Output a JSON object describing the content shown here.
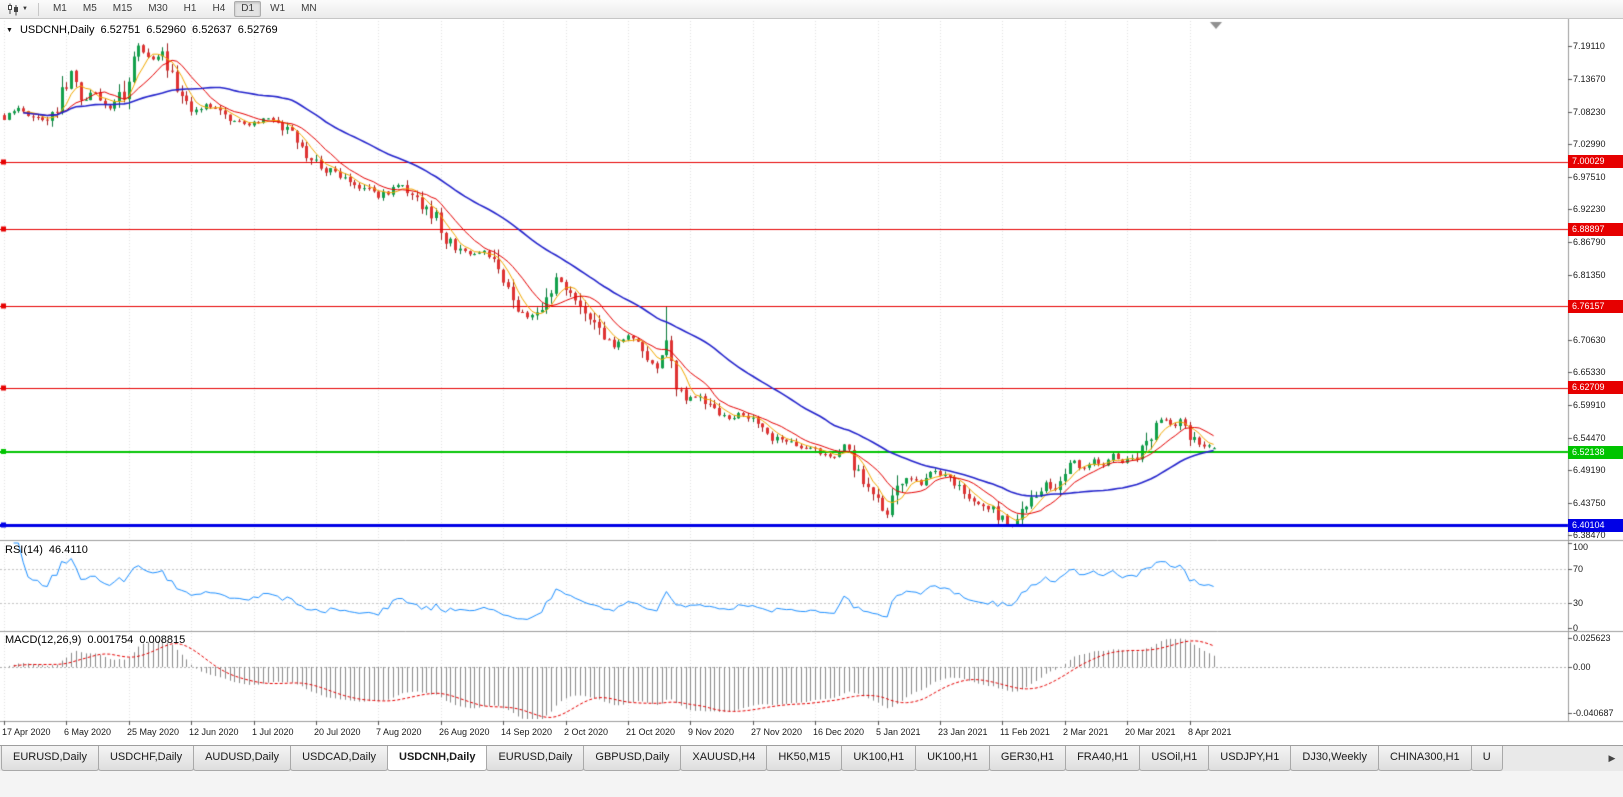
{
  "toolbar": {
    "chart_type_icon": "candlestick-chart-icon",
    "dropdown_icon": "chevron-down-icon",
    "timeframes": [
      "M1",
      "M5",
      "M15",
      "M30",
      "H1",
      "H4",
      "D1",
      "W1",
      "MN"
    ],
    "active_timeframe": "D1"
  },
  "main_chart": {
    "symbol_period": "USDCNH,Daily",
    "ohlc": {
      "open": "6.52751",
      "high": "6.52960",
      "low": "6.52637",
      "close": "6.52769"
    },
    "price_axis_labels": [
      "7.19110",
      "7.13670",
      "7.08230",
      "7.02990",
      "6.97510",
      "6.92230",
      "6.86790",
      "6.81350",
      "6.70630",
      "6.65330",
      "6.59910",
      "6.54470",
      "6.49190",
      "6.43750",
      "6.38470"
    ],
    "price_lines": [
      {
        "label": "7.00029",
        "price": 7.00029,
        "color": "#e60000",
        "line_width": 1
      },
      {
        "label": "6.88897",
        "price": 6.88897,
        "color": "#e60000",
        "line_width": 1
      },
      {
        "label": "6.76157",
        "price": 6.76157,
        "color": "#e60000",
        "line_width": 1
      },
      {
        "label": "6.62709",
        "price": 6.62709,
        "color": "#e60000",
        "line_width": 1
      },
      {
        "label": "6.52138",
        "price": 6.52138,
        "color": "#00c400",
        "line_width": 2
      },
      {
        "label": "6.40104",
        "price": 6.40104,
        "color": "#0000e6",
        "line_width": 3
      }
    ],
    "time_axis_labels": [
      "17 Apr 2020",
      "6 May 2020",
      "25 May 2020",
      "12 Jun 2020",
      "1 Jul 2020",
      "20 Jul 2020",
      "7 Aug 2020",
      "26 Aug 2020",
      "14 Sep 2020",
      "2 Oct 2020",
      "21 Oct 2020",
      "9 Nov 2020",
      "27 Nov 2020",
      "16 Dec 2020",
      "5 Jan 2021",
      "23 Jan 2021",
      "11 Feb 2021",
      "2 Mar 2021",
      "20 Mar 2021",
      "8 Apr 2021"
    ]
  },
  "rsi_panel": {
    "label": "RSI(14)",
    "value": "46.4110",
    "axis_labels": [
      "100",
      "70",
      "30",
      "0"
    ],
    "levels": [
      70,
      30
    ],
    "line_color": "#1e90ff"
  },
  "macd_panel": {
    "label": "MACD(12,26,9)",
    "main_value": "0.001754",
    "signal_value": "0.008815",
    "axis_labels": [
      "0.025623",
      "0.00",
      "-0.040687"
    ],
    "histogram_color": "#8a8a8a",
    "signal_color": "#e60000"
  },
  "chart_data": {
    "type": "candlestick",
    "symbol": "USDCNH",
    "timeframe": "Daily",
    "candle_count": 253,
    "price_range": [
      6.3764,
      7.2339
    ],
    "up_color": "#12a14b",
    "down_color": "#df3333",
    "up_wick_color": "#0c7a3c",
    "down_wick_color": "#a32222",
    "close_anchors": [
      [
        0,
        7.073
      ],
      [
        3,
        7.09
      ],
      [
        6,
        7.078
      ],
      [
        9,
        7.066
      ],
      [
        12,
        7.108
      ],
      [
        14,
        7.15
      ],
      [
        16,
        7.098
      ],
      [
        19,
        7.116
      ],
      [
        22,
        7.088
      ],
      [
        25,
        7.12
      ],
      [
        28,
        7.19
      ],
      [
        31,
        7.168
      ],
      [
        33,
        7.176
      ],
      [
        36,
        7.128
      ],
      [
        39,
        7.086
      ],
      [
        43,
        7.094
      ],
      [
        47,
        7.072
      ],
      [
        51,
        7.063
      ],
      [
        55,
        7.072
      ],
      [
        59,
        7.052
      ],
      [
        63,
        7.012
      ],
      [
        67,
        6.988
      ],
      [
        71,
        6.976
      ],
      [
        75,
        6.958
      ],
      [
        78,
        6.943
      ],
      [
        82,
        6.963
      ],
      [
        86,
        6.938
      ],
      [
        90,
        6.906
      ],
      [
        93,
        6.862
      ],
      [
        97,
        6.845
      ],
      [
        100,
        6.856
      ],
      [
        103,
        6.824
      ],
      [
        106,
        6.766
      ],
      [
        109,
        6.746
      ],
      [
        112,
        6.76
      ],
      [
        115,
        6.81
      ],
      [
        118,
        6.792
      ],
      [
        121,
        6.756
      ],
      [
        124,
        6.722
      ],
      [
        127,
        6.698
      ],
      [
        130,
        6.712
      ],
      [
        133,
        6.682
      ],
      [
        136,
        6.656
      ],
      [
        138,
        6.7
      ],
      [
        140,
        6.636
      ],
      [
        142,
        6.61
      ],
      [
        145,
        6.618
      ],
      [
        148,
        6.586
      ],
      [
        151,
        6.576
      ],
      [
        154,
        6.586
      ],
      [
        157,
        6.566
      ],
      [
        160,
        6.546
      ],
      [
        163,
        6.54
      ],
      [
        166,
        6.53
      ],
      [
        169,
        6.526
      ],
      [
        172,
        6.512
      ],
      [
        175,
        6.532
      ],
      [
        177,
        6.506
      ],
      [
        179,
        6.462
      ],
      [
        182,
        6.44
      ],
      [
        184,
        6.418
      ],
      [
        186,
        6.462
      ],
      [
        188,
        6.482
      ],
      [
        191,
        6.466
      ],
      [
        194,
        6.49
      ],
      [
        197,
        6.476
      ],
      [
        200,
        6.456
      ],
      [
        203,
        6.442
      ],
      [
        206,
        6.426
      ],
      [
        209,
        6.402
      ],
      [
        211,
        6.408
      ],
      [
        213,
        6.442
      ],
      [
        215,
        6.456
      ],
      [
        217,
        6.47
      ],
      [
        219,
        6.462
      ],
      [
        221,
        6.49
      ],
      [
        223,
        6.504
      ],
      [
        225,
        6.494
      ],
      [
        227,
        6.51
      ],
      [
        229,
        6.5
      ],
      [
        231,
        6.516
      ],
      [
        233,
        6.506
      ],
      [
        235,
        6.512
      ],
      [
        237,
        6.526
      ],
      [
        239,
        6.556
      ],
      [
        241,
        6.576
      ],
      [
        243,
        6.566
      ],
      [
        245,
        6.572
      ],
      [
        247,
        6.546
      ],
      [
        249,
        6.532
      ],
      [
        251,
        6.536
      ],
      [
        252,
        6.5277
      ]
    ],
    "last_candle": {
      "open": 6.52751,
      "high": 6.5296,
      "low": 6.52637,
      "close": 6.52769
    },
    "spike_high": {
      "index": 138,
      "high": 6.761
    },
    "moving_averages": [
      {
        "period": 5,
        "color": "#f2a900",
        "line_width": 1
      },
      {
        "period": 10,
        "color": "#e60000",
        "line_width": 1
      },
      {
        "period": 34,
        "color": "#2323cc",
        "line_width": 1.6
      }
    ],
    "rsi": {
      "period": 14,
      "current": 46.411,
      "range": [
        0,
        100
      ],
      "levels": [
        70,
        30
      ]
    },
    "macd": {
      "fast": 12,
      "slow": 26,
      "signal": 9,
      "current_main": 0.001754,
      "current_signal": 0.008815,
      "range": [
        -0.0458,
        0.0299
      ]
    }
  },
  "tabs": {
    "items": [
      "EURUSD,Daily",
      "USDCHF,Daily",
      "AUDUSD,Daily",
      "USDCAD,Daily",
      "USDCNH,Daily",
      "EURUSD,Daily",
      "GBPUSD,Daily",
      "XAUUSD,H4",
      "HK50,M15",
      "UK100,H1",
      "UK100,H1",
      "GER30,H1",
      "FRA40,H1",
      "USOil,H1",
      "USDJPY,H1",
      "DJ30,Weekly",
      "CHINA300,H1",
      "U"
    ],
    "active_index": 4,
    "scroll_right_icon": "chevron-right-icon"
  }
}
